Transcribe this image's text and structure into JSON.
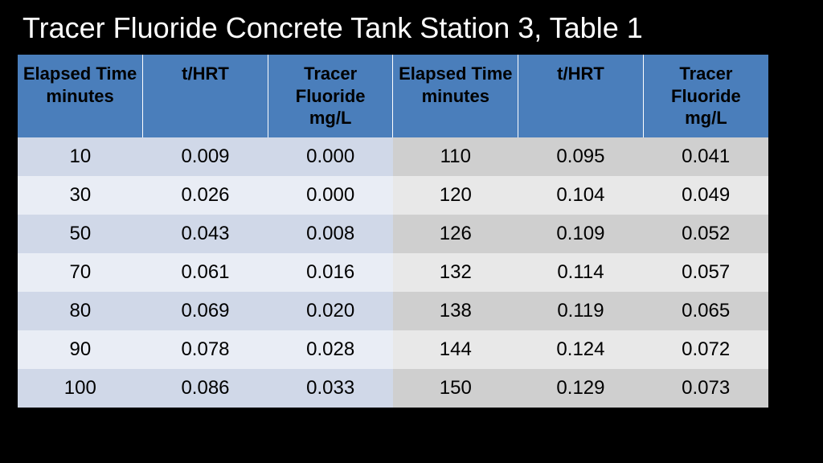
{
  "title": "Tracer Fluoride Concrete Tank Station 3, Table 1",
  "table": {
    "type": "table",
    "header_bg": "#4a7ebb",
    "left_odd_bg": "#d0d8e8",
    "left_even_bg": "#e9edf5",
    "right_odd_bg": "#cfcfcf",
    "right_even_bg": "#e8e8e8",
    "title_color": "#ffffff",
    "title_fontsize": 36,
    "header_fontsize": 22,
    "cell_fontsize": 24,
    "background_color": "#000000",
    "columns": [
      "Elapsed Time minutes",
      "t/HRT",
      "Tracer Fluoride mg/L",
      "Elapsed Time minutes",
      "t/HRT",
      "Tracer Fluoride mg/L"
    ],
    "rows": [
      [
        "10",
        "0.009",
        "0.000",
        "110",
        "0.095",
        "0.041"
      ],
      [
        "30",
        "0.026",
        "0.000",
        "120",
        "0.104",
        "0.049"
      ],
      [
        "50",
        "0.043",
        "0.008",
        "126",
        "0.109",
        "0.052"
      ],
      [
        "70",
        "0.061",
        "0.016",
        "132",
        "0.114",
        "0.057"
      ],
      [
        "80",
        "0.069",
        "0.020",
        "138",
        "0.119",
        "0.065"
      ],
      [
        "90",
        "0.078",
        "0.028",
        "144",
        "0.124",
        "0.072"
      ],
      [
        "100",
        "0.086",
        "0.033",
        "150",
        "0.129",
        "0.073"
      ]
    ]
  }
}
